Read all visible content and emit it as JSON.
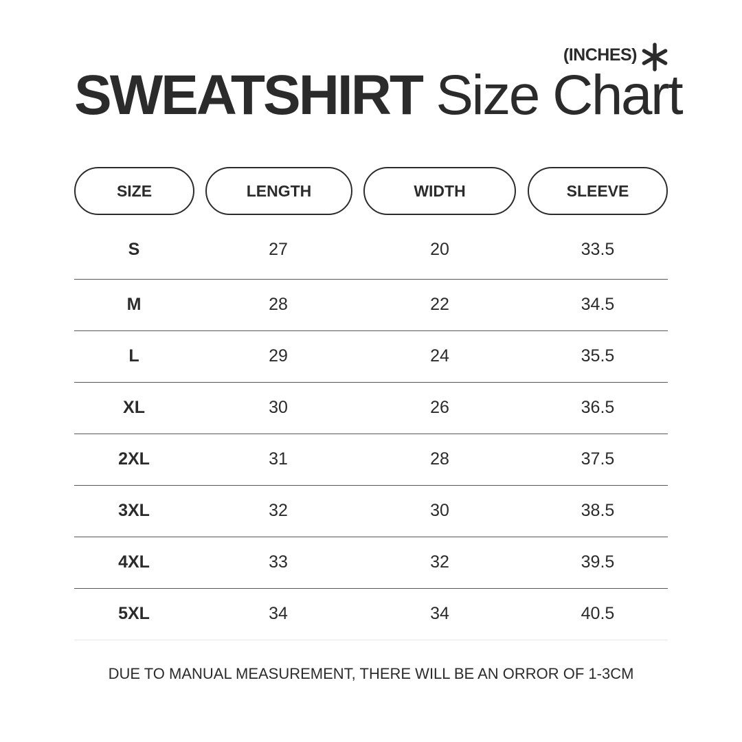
{
  "header": {
    "units": "(INCHES)",
    "units_icon": "asterisk-icon",
    "title_bold": "SWEATSHIRT",
    "title_light": "Size Chart"
  },
  "table": {
    "columns": [
      "SIZE",
      "LENGTH",
      "WIDTH",
      "SLEEVE"
    ],
    "rows": [
      [
        "S",
        "27",
        "20",
        "33.5"
      ],
      [
        "M",
        "28",
        "22",
        "34.5"
      ],
      [
        "L",
        "29",
        "24",
        "35.5"
      ],
      [
        "XL",
        "30",
        "26",
        "36.5"
      ],
      [
        "2XL",
        "31",
        "28",
        "37.5"
      ],
      [
        "3XL",
        "32",
        "30",
        "38.5"
      ],
      [
        "4XL",
        "33",
        "32",
        "39.5"
      ],
      [
        "5XL",
        "34",
        "34",
        "40.5"
      ]
    ]
  },
  "footer": {
    "note": "DUE TO MANUAL MEASUREMENT, THERE WILL BE AN ORROR OF 1-3CM"
  }
}
